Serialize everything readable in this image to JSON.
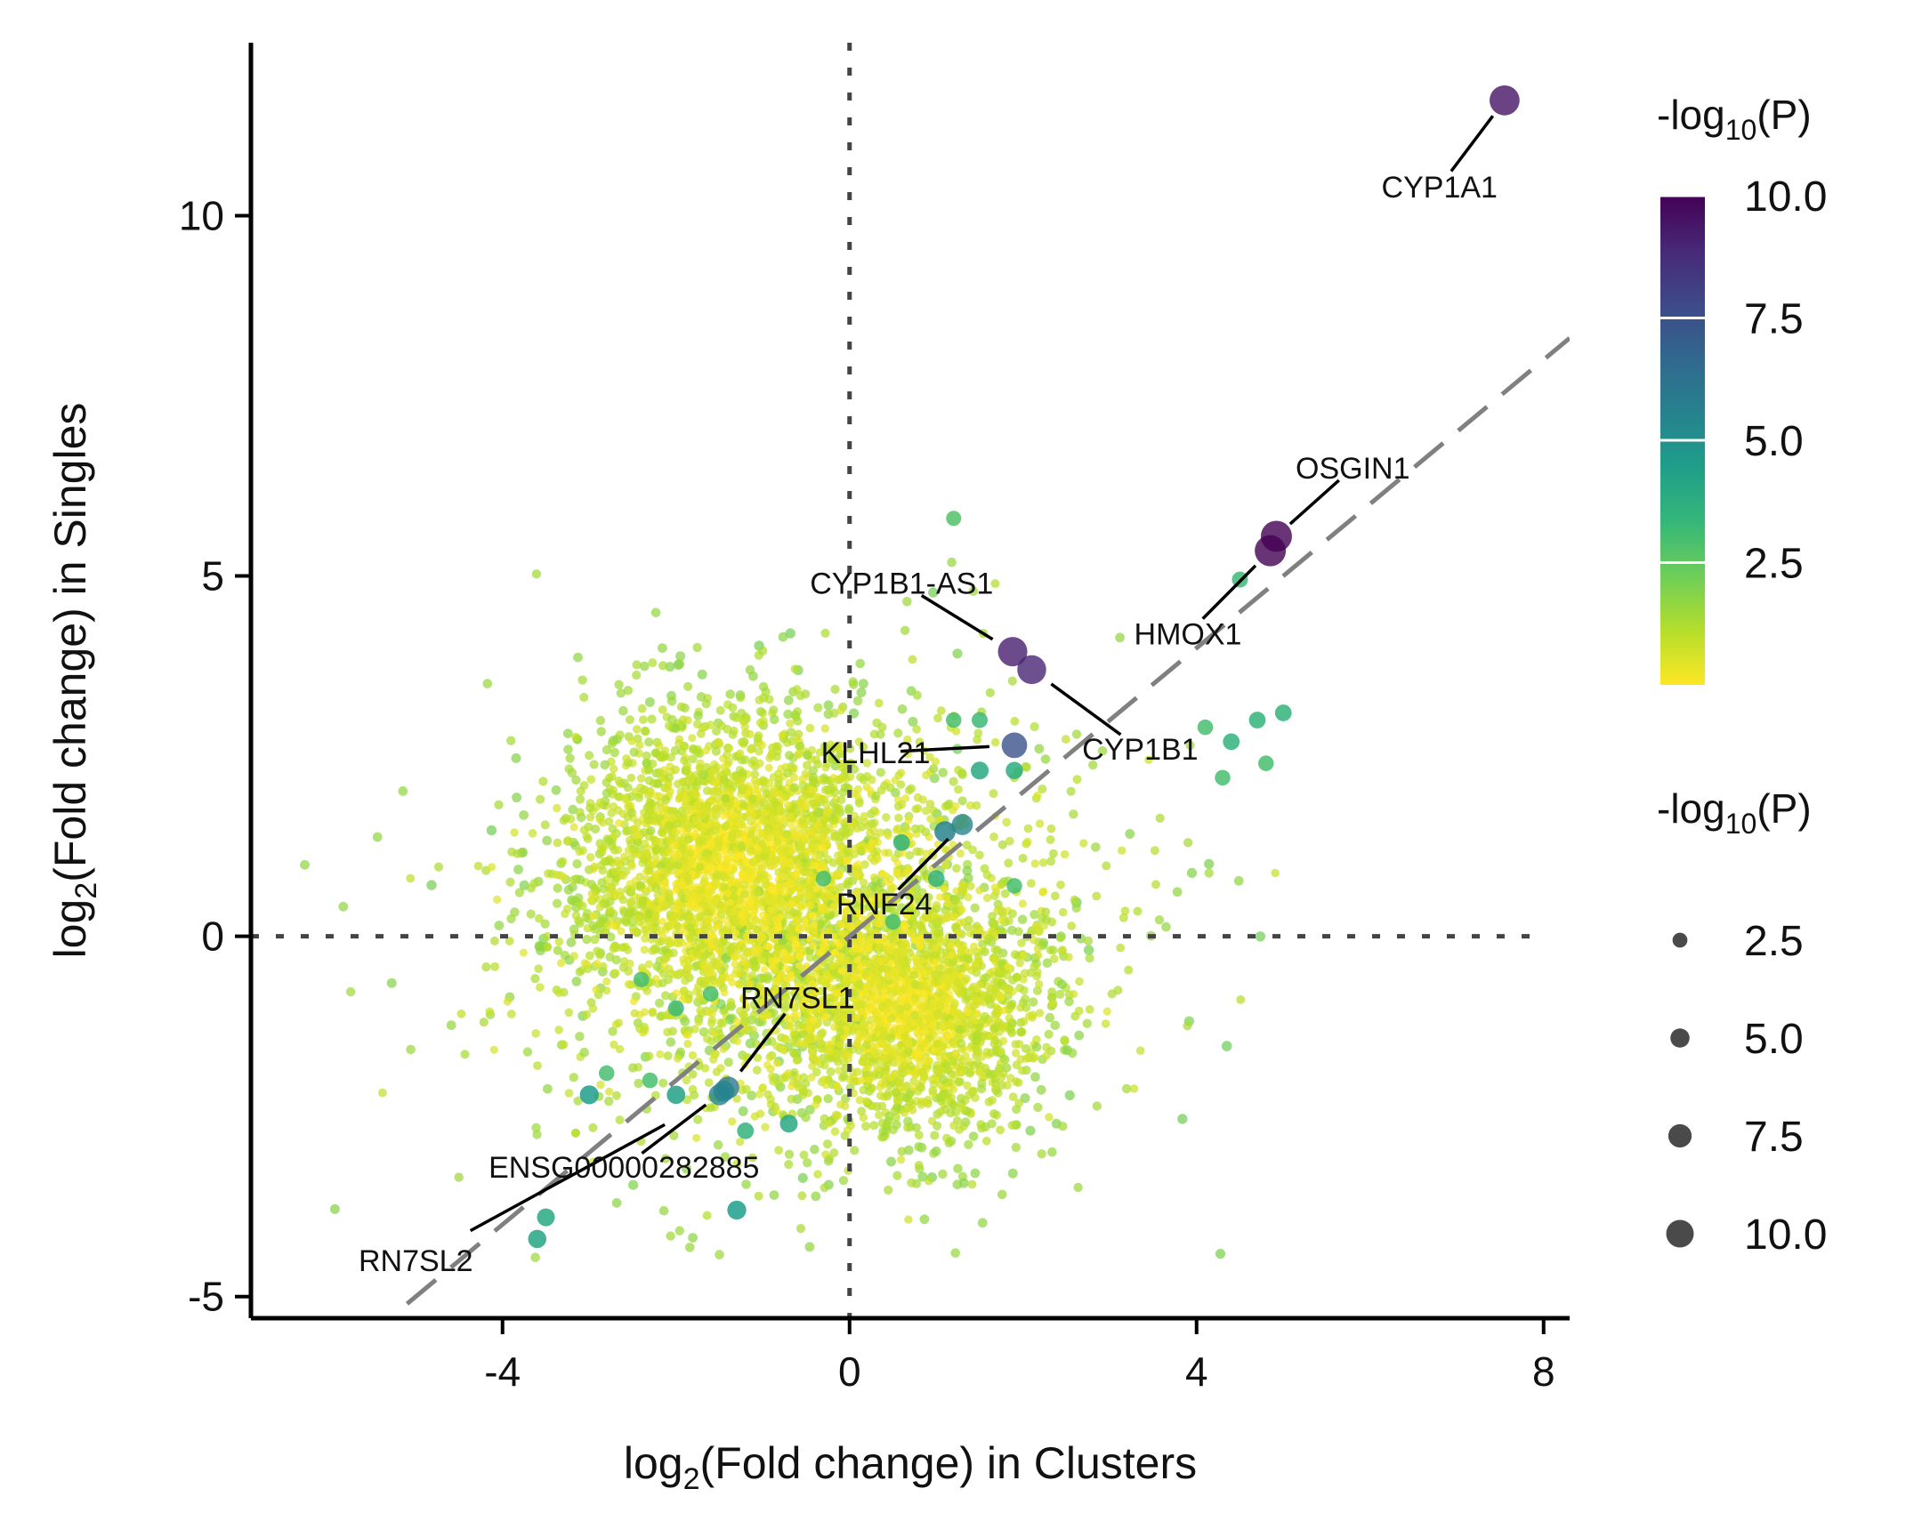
{
  "chart_data": {
    "type": "scatter",
    "xlabel": {
      "main": "log",
      "sub": "2",
      "rest": "(Fold change) in Clusters"
    },
    "ylabel": {
      "main": "log",
      "sub": "2",
      "rest": "(Fold change) in Singles"
    },
    "xlim": [
      -6.9,
      8.3
    ],
    "ylim": [
      -5.3,
      12.4
    ],
    "xticks": [
      -4,
      0,
      4,
      8
    ],
    "yticks": [
      -5,
      0,
      5,
      10
    ],
    "xtick_labels": [
      "-4",
      "0",
      "4",
      "8"
    ],
    "ytick_labels": [
      "-5",
      "0",
      "5",
      "10"
    ],
    "reference_lines": {
      "x0": 0,
      "y0": 0,
      "identity_from": -5.1,
      "identity_to": 8.3
    },
    "grid": false,
    "color_legend": {
      "title": {
        "main": "-log",
        "sub": "10",
        "rest": "(P)"
      },
      "range": [
        0,
        10
      ],
      "ticks": [
        10.0,
        7.5,
        5.0,
        2.5
      ],
      "tick_labels": [
        "10.0",
        "7.5",
        "5.0",
        "2.5"
      ],
      "colormap": "viridis (reversed)",
      "colors": [
        "#fde725",
        "#b5de2b",
        "#6ece58",
        "#35b779",
        "#1f9e89",
        "#26828e",
        "#31688e",
        "#3e4989",
        "#482878",
        "#440154"
      ]
    },
    "size_legend": {
      "title": {
        "main": "-log",
        "sub": "10",
        "rest": "(P)"
      },
      "values": [
        2.5,
        5.0,
        7.5,
        10.0
      ],
      "labels": [
        "2.5",
        "5.0",
        "7.5",
        "10.0"
      ],
      "color": "#4a4a4a"
    },
    "labeled_points": [
      {
        "gene": "CYP1A1",
        "x": 7.55,
        "y": 11.6,
        "p": 9.5,
        "label_x": 6.8,
        "label_y": 10.4
      },
      {
        "gene": "OSGIN1",
        "x": 4.92,
        "y": 5.55,
        "p": 10.0,
        "label_x": 5.8,
        "label_y": 6.5
      },
      {
        "gene": "HMOX1",
        "x": 4.85,
        "y": 5.35,
        "p": 10.0,
        "label_x": 3.9,
        "label_y": 4.2
      },
      {
        "gene": "CYP1B1-AS1",
        "x": 1.88,
        "y": 3.95,
        "p": 9.2,
        "label_x": 0.6,
        "label_y": 4.9
      },
      {
        "gene": "CYP1B1",
        "x": 2.1,
        "y": 3.7,
        "p": 9.0,
        "label_x": 3.35,
        "label_y": 2.6
      },
      {
        "gene": "KLHL21",
        "x": 1.9,
        "y": 2.65,
        "p": 7.5,
        "label_x": 0.3,
        "label_y": 2.55
      },
      {
        "gene": "RNF24",
        "x": 1.3,
        "y": 1.55,
        "p": 5.5,
        "label_x": 0.4,
        "label_y": 0.45
      },
      {
        "gene": "RN7SL1",
        "x": -1.4,
        "y": -2.1,
        "p": 6.0,
        "label_x": -0.6,
        "label_y": -0.85
      },
      {
        "gene": "ENSG00000282885",
        "x": -1.45,
        "y": -2.15,
        "p": 5.5,
        "label_x": -2.6,
        "label_y": -3.2
      },
      {
        "gene": "RN7SL2",
        "x": -1.5,
        "y": -2.2,
        "p": 5.5,
        "label_x": -5.0,
        "label_y": -4.5
      }
    ],
    "highlight_points": [
      {
        "x": -3.5,
        "y": -3.9,
        "p": 4.0
      },
      {
        "x": -3.6,
        "y": -4.2,
        "p": 4.2
      },
      {
        "x": -3.0,
        "y": -2.2,
        "p": 4.5
      },
      {
        "x": -2.0,
        "y": -2.2,
        "p": 4.3
      },
      {
        "x": -1.3,
        "y": -3.8,
        "p": 4.5
      },
      {
        "x": -0.7,
        "y": -2.6,
        "p": 4.0
      },
      {
        "x": -1.2,
        "y": -2.7,
        "p": 3.5
      },
      {
        "x": -2.3,
        "y": -2.0,
        "p": 3.0
      },
      {
        "x": -1.6,
        "y": -0.8,
        "p": 3.0
      },
      {
        "x": -2.0,
        "y": -1.0,
        "p": 3.2
      },
      {
        "x": -2.8,
        "y": -1.9,
        "p": 3.0
      },
      {
        "x": -2.4,
        "y": -0.6,
        "p": 3.0
      },
      {
        "x": 1.1,
        "y": 1.45,
        "p": 5.5
      },
      {
        "x": 0.6,
        "y": 1.3,
        "p": 3.5
      },
      {
        "x": 1.5,
        "y": 2.3,
        "p": 4.0
      },
      {
        "x": 1.9,
        "y": 2.3,
        "p": 3.8
      },
      {
        "x": 1.2,
        "y": 3.0,
        "p": 3.0
      },
      {
        "x": 1.5,
        "y": 3.0,
        "p": 3.2
      },
      {
        "x": 4.4,
        "y": 2.7,
        "p": 3.5
      },
      {
        "x": 4.7,
        "y": 3.0,
        "p": 3.5
      },
      {
        "x": 5.0,
        "y": 3.1,
        "p": 3.5
      },
      {
        "x": 4.1,
        "y": 2.9,
        "p": 3.0
      },
      {
        "x": 4.8,
        "y": 2.4,
        "p": 3.0
      },
      {
        "x": 4.3,
        "y": 2.2,
        "p": 3.0
      },
      {
        "x": 4.5,
        "y": 4.95,
        "p": 3.2
      },
      {
        "x": 1.2,
        "y": 5.8,
        "p": 2.8
      },
      {
        "x": 1.0,
        "y": 0.8,
        "p": 3.5
      },
      {
        "x": 1.9,
        "y": 0.7,
        "p": 3.0
      },
      {
        "x": 0.5,
        "y": 0.2,
        "p": 3.0
      },
      {
        "x": -0.3,
        "y": 0.8,
        "p": 3.0
      }
    ],
    "background_points": "approx. 6000 weakly significant genes (yellow-green, -log10(P) 0–3) densely clustered around (-1.5, 1) and (0.8, -1), spread roughly from x -6.3 to 5.0 and y -4.5 to 7.0; points are generated procedurally and rendered by the script."
  }
}
